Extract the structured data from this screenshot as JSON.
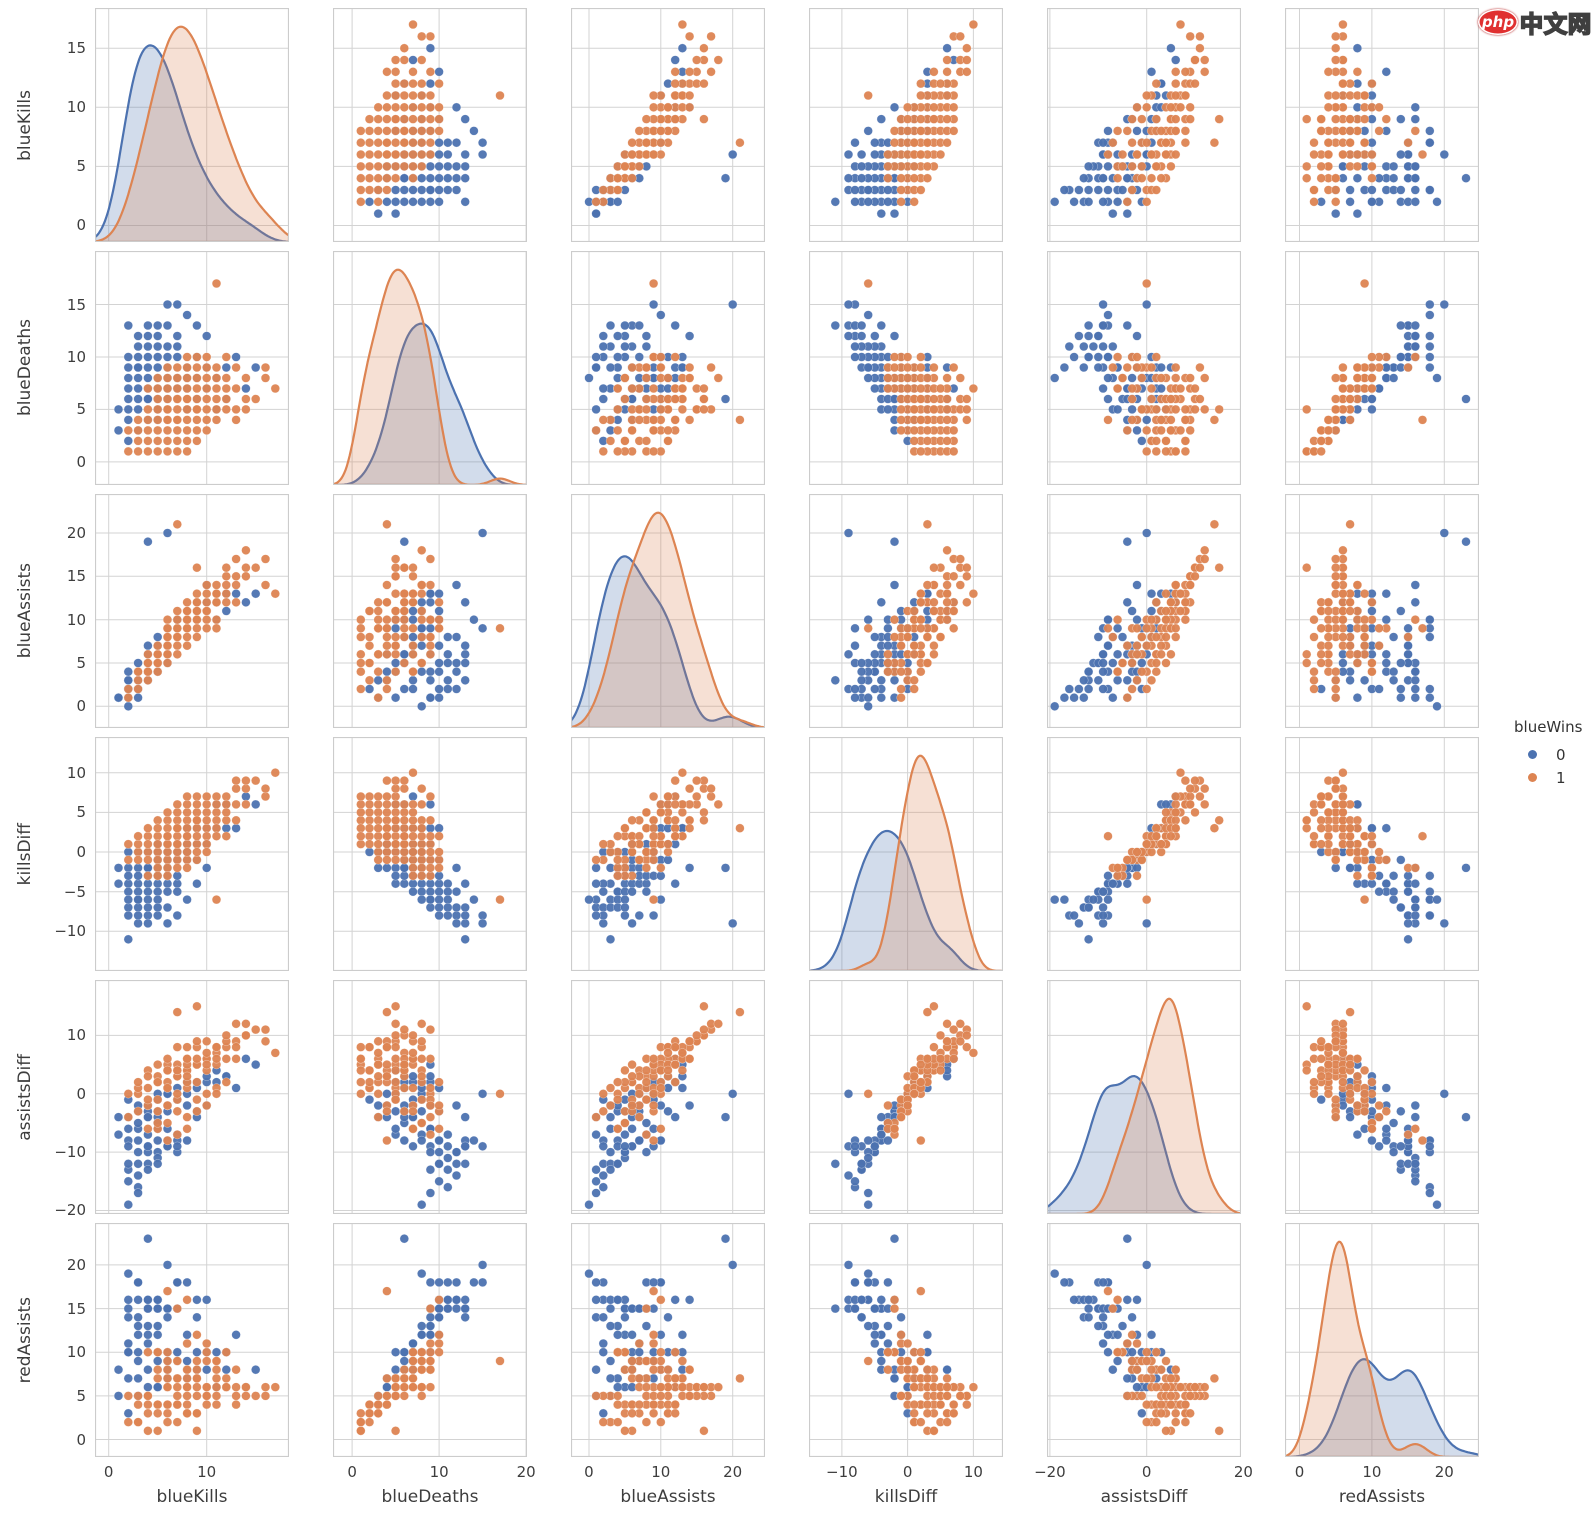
{
  "watermark": {
    "logo_text": "php",
    "site_text": "中文网"
  },
  "legend": {
    "title": "blueWins",
    "items": [
      {
        "label": "0",
        "color": "#4c72b0"
      },
      {
        "label": "1",
        "color": "#dd8452"
      }
    ]
  },
  "chart_data": {
    "type": "scatter",
    "subtype": "pairplot-matrix",
    "grid": "on",
    "diagonal": "kde",
    "hue": "blueWins",
    "legend_position": "right",
    "palette": {
      "0": "#4c72b0",
      "1": "#dd8452"
    },
    "variables": [
      {
        "name": "blueKills",
        "lim": [
          -1.4,
          18.4
        ],
        "xticks": [
          0,
          10
        ],
        "yticks": [
          0,
          5,
          10,
          15
        ]
      },
      {
        "name": "blueDeaths",
        "lim": [
          -2.2,
          20.1
        ],
        "xticks": [
          0,
          10,
          20
        ],
        "yticks": [
          0,
          5,
          10,
          15
        ]
      },
      {
        "name": "blueAssists",
        "lim": [
          -2.5,
          24.5
        ],
        "xticks": [
          0,
          10,
          20
        ],
        "yticks": [
          0,
          5,
          10,
          15,
          20
        ]
      },
      {
        "name": "killsDiff",
        "lim": [
          -15.0,
          14.5
        ],
        "xticks": [
          -10,
          0,
          10
        ],
        "yticks": [
          -10,
          -5,
          0,
          5,
          10
        ]
      },
      {
        "name": "assistsDiff",
        "lim": [
          -20.6,
          19.5
        ],
        "xticks": [
          -20,
          0,
          20
        ],
        "yticks": [
          -20,
          -10,
          0,
          10
        ]
      },
      {
        "name": "redAssists",
        "lim": [
          -2.0,
          24.8
        ],
        "xticks": [
          0,
          10,
          20
        ],
        "yticks": [
          0,
          5,
          10,
          15,
          20
        ]
      }
    ],
    "columns": [
      "blueKills",
      "blueDeaths",
      "blueAssists",
      "killsDiff",
      "assistsDiff",
      "redAssists",
      "blueWins"
    ],
    "records": [
      [
        5,
        3,
        6,
        2,
        2,
        4,
        1
      ],
      [
        7,
        4,
        8,
        3,
        3,
        5,
        1
      ],
      [
        6,
        5,
        7,
        1,
        1,
        6,
        1
      ],
      [
        8,
        6,
        10,
        2,
        4,
        6,
        1
      ],
      [
        9,
        5,
        11,
        4,
        5,
        6,
        1
      ],
      [
        10,
        7,
        12,
        3,
        6,
        6,
        1
      ],
      [
        4,
        2,
        5,
        2,
        1,
        4,
        1
      ],
      [
        3,
        3,
        4,
        0,
        0,
        4,
        1
      ],
      [
        6,
        4,
        6,
        2,
        2,
        4,
        1
      ],
      [
        7,
        6,
        9,
        1,
        3,
        6,
        1
      ],
      [
        8,
        4,
        9,
        4,
        4,
        5,
        1
      ],
      [
        11,
        6,
        13,
        5,
        7,
        6,
        1
      ],
      [
        12,
        8,
        14,
        4,
        8,
        6,
        1
      ],
      [
        13,
        7,
        15,
        6,
        9,
        6,
        1
      ],
      [
        9,
        8,
        10,
        1,
        2,
        8,
        1
      ],
      [
        5,
        5,
        6,
        0,
        -1,
        7,
        1
      ],
      [
        6,
        7,
        7,
        -1,
        -2,
        9,
        1
      ],
      [
        7,
        8,
        8,
        -1,
        -1,
        9,
        1
      ],
      [
        10,
        5,
        11,
        5,
        6,
        5,
        1
      ],
      [
        11,
        4,
        12,
        7,
        8,
        4,
        1
      ],
      [
        8,
        3,
        10,
        5,
        6,
        4,
        1
      ],
      [
        9,
        2,
        11,
        7,
        8,
        3,
        1
      ],
      [
        14,
        6,
        16,
        8,
        10,
        6,
        1
      ],
      [
        16,
        9,
        17,
        7,
        11,
        6,
        1
      ],
      [
        4,
        4,
        3,
        0,
        -2,
        5,
        1
      ],
      [
        5,
        6,
        5,
        -1,
        -3,
        8,
        1
      ],
      [
        6,
        6,
        8,
        0,
        1,
        7,
        1
      ],
      [
        7,
        5,
        7,
        2,
        0,
        7,
        1
      ],
      [
        8,
        7,
        9,
        1,
        1,
        8,
        1
      ],
      [
        9,
        6,
        12,
        3,
        5,
        7,
        1
      ],
      [
        10,
        8,
        13,
        2,
        4,
        9,
        1
      ],
      [
        12,
        5,
        15,
        7,
        9,
        6,
        1
      ],
      [
        7,
        3,
        9,
        4,
        5,
        4,
        1
      ],
      [
        6,
        2,
        7,
        4,
        4,
        3,
        1
      ],
      [
        5,
        1,
        6,
        4,
        5,
        1,
        1
      ],
      [
        4,
        1,
        5,
        3,
        4,
        1,
        1
      ],
      [
        3,
        2,
        3,
        1,
        1,
        2,
        1
      ],
      [
        2,
        1,
        2,
        1,
        0,
        2,
        1
      ],
      [
        8,
        5,
        8,
        3,
        2,
        6,
        1
      ],
      [
        9,
        4,
        10,
        5,
        5,
        5,
        1
      ],
      [
        10,
        6,
        11,
        4,
        5,
        6,
        1
      ],
      [
        11,
        7,
        12,
        4,
        5,
        7,
        1
      ],
      [
        12,
        6,
        13,
        6,
        6,
        7,
        1
      ],
      [
        13,
        9,
        14,
        4,
        6,
        8,
        1
      ],
      [
        7,
        7,
        6,
        0,
        -3,
        9,
        1
      ],
      [
        6,
        8,
        5,
        -2,
        -5,
        10,
        1
      ],
      [
        5,
        7,
        4,
        -2,
        -6,
        10,
        1
      ],
      [
        8,
        9,
        7,
        -1,
        -4,
        11,
        1
      ],
      [
        9,
        10,
        9,
        -1,
        -3,
        12,
        1
      ],
      [
        10,
        9,
        10,
        1,
        0,
        10,
        1
      ],
      [
        7,
        2,
        8,
        5,
        4,
        4,
        1
      ],
      [
        6,
        3,
        9,
        3,
        5,
        4,
        1
      ],
      [
        5,
        4,
        7,
        1,
        3,
        4,
        1
      ],
      [
        4,
        5,
        4,
        -1,
        -1,
        5,
        1
      ],
      [
        3,
        4,
        2,
        -1,
        -3,
        5,
        1
      ],
      [
        2,
        3,
        1,
        -1,
        -4,
        5,
        1
      ],
      [
        8,
        8,
        11,
        0,
        3,
        8,
        1
      ],
      [
        9,
        7,
        13,
        2,
        6,
        7,
        1
      ],
      [
        10,
        4,
        14,
        6,
        9,
        5,
        1
      ],
      [
        11,
        5,
        13,
        6,
        8,
        5,
        1
      ],
      [
        12,
        7,
        16,
        5,
        10,
        6,
        1
      ],
      [
        13,
        5,
        17,
        8,
        12,
        5,
        1
      ],
      [
        14,
        8,
        18,
        6,
        12,
        6,
        1
      ],
      [
        15,
        6,
        16,
        9,
        11,
        5,
        1
      ],
      [
        6,
        5,
        10,
        1,
        4,
        6,
        1
      ],
      [
        7,
        6,
        11,
        1,
        4,
        7,
        1
      ],
      [
        8,
        6,
        12,
        2,
        5,
        7,
        1
      ],
      [
        9,
        9,
        8,
        0,
        -1,
        9,
        1
      ],
      [
        10,
        10,
        9,
        0,
        -2,
        11,
        1
      ],
      [
        11,
        8,
        14,
        3,
        6,
        8,
        1
      ],
      [
        5,
        2,
        5,
        3,
        2,
        3,
        1
      ],
      [
        4,
        3,
        6,
        1,
        3,
        3,
        1
      ],
      [
        3,
        1,
        4,
        2,
        2,
        2,
        1
      ],
      [
        6,
        1,
        8,
        5,
        6,
        2,
        1
      ],
      [
        7,
        1,
        10,
        6,
        8,
        2,
        1
      ],
      [
        8,
        2,
        11,
        6,
        8,
        3,
        1
      ],
      [
        9,
        3,
        12,
        6,
        9,
        3,
        1
      ],
      [
        10,
        3,
        11,
        7,
        7,
        4,
        1
      ],
      [
        11,
        9,
        10,
        2,
        1,
        9,
        1
      ],
      [
        12,
        10,
        12,
        2,
        2,
        10,
        1
      ],
      [
        17,
        7,
        13,
        10,
        7,
        6,
        1
      ],
      [
        7,
        4,
        21,
        3,
        14,
        7,
        1
      ],
      [
        11,
        17,
        9,
        -6,
        0,
        9,
        1
      ],
      [
        8,
        1,
        9,
        7,
        6,
        3,
        1
      ],
      [
        13,
        4,
        12,
        9,
        8,
        4,
        1
      ],
      [
        14,
        5,
        15,
        9,
        10,
        5,
        1
      ],
      [
        6,
        9,
        6,
        -3,
        -2,
        8,
        1
      ],
      [
        5,
        8,
        5,
        -3,
        -5,
        10,
        1
      ],
      [
        4,
        7,
        4,
        -3,
        -6,
        10,
        1
      ],
      [
        16,
        8,
        14,
        8,
        9,
        5,
        1
      ],
      [
        7,
        9,
        8,
        -2,
        -7,
        15,
        1
      ],
      [
        8,
        10,
        10,
        -2,
        -6,
        16,
        1
      ],
      [
        6,
        4,
        9,
        2,
        -8,
        17,
        1
      ],
      [
        9,
        5,
        16,
        4,
        15,
        1,
        1
      ],
      [
        3,
        5,
        4,
        -2,
        -3,
        7,
        0
      ],
      [
        4,
        6,
        5,
        -2,
        -3,
        8,
        0
      ],
      [
        5,
        7,
        6,
        -2,
        -4,
        10,
        0
      ],
      [
        6,
        8,
        7,
        -2,
        -3,
        10,
        0
      ],
      [
        2,
        4,
        3,
        -2,
        -4,
        7,
        0
      ],
      [
        3,
        7,
        3,
        -4,
        -6,
        9,
        0
      ],
      [
        4,
        8,
        5,
        -4,
        -7,
        12,
        0
      ],
      [
        5,
        9,
        6,
        -4,
        -6,
        12,
        0
      ],
      [
        6,
        10,
        7,
        -4,
        -8,
        15,
        0
      ],
      [
        7,
        11,
        8,
        -4,
        -7,
        15,
        0
      ],
      [
        2,
        6,
        2,
        -4,
        -8,
        10,
        0
      ],
      [
        3,
        8,
        4,
        -5,
        -8,
        12,
        0
      ],
      [
        4,
        9,
        4,
        -5,
        -9,
        13,
        0
      ],
      [
        5,
        10,
        5,
        -5,
        -10,
        15,
        0
      ],
      [
        6,
        11,
        6,
        -5,
        -9,
        15,
        0
      ],
      [
        7,
        12,
        8,
        -5,
        -10,
        18,
        0
      ],
      [
        1,
        5,
        1,
        -4,
        -7,
        8,
        0
      ],
      [
        2,
        7,
        2,
        -5,
        -9,
        11,
        0
      ],
      [
        3,
        9,
        3,
        -6,
        -10,
        13,
        0
      ],
      [
        4,
        10,
        4,
        -6,
        -12,
        16,
        0
      ],
      [
        5,
        11,
        5,
        -6,
        -11,
        16,
        0
      ],
      [
        2,
        9,
        1,
        -7,
        -13,
        14,
        0
      ],
      [
        3,
        10,
        2,
        -7,
        -12,
        14,
        0
      ],
      [
        4,
        12,
        5,
        -8,
        -10,
        15,
        0
      ],
      [
        3,
        12,
        2,
        -9,
        -14,
        16,
        0
      ],
      [
        2,
        13,
        3,
        -11,
        -12,
        15,
        0
      ],
      [
        4,
        13,
        6,
        -9,
        -9,
        15,
        0
      ],
      [
        5,
        13,
        7,
        -8,
        -8,
        15,
        0
      ],
      [
        6,
        6,
        6,
        0,
        -2,
        8,
        0
      ],
      [
        7,
        7,
        8,
        0,
        -1,
        9,
        0
      ],
      [
        8,
        8,
        9,
        0,
        0,
        9,
        0
      ],
      [
        5,
        5,
        5,
        0,
        -1,
        6,
        0
      ],
      [
        4,
        4,
        4,
        0,
        -2,
        6,
        0
      ],
      [
        6,
        7,
        7,
        -1,
        -2,
        9,
        0
      ],
      [
        7,
        8,
        9,
        -1,
        -1,
        10,
        0
      ],
      [
        8,
        9,
        10,
        -1,
        -2,
        12,
        0
      ],
      [
        9,
        10,
        11,
        -1,
        -3,
        14,
        0
      ],
      [
        5,
        6,
        6,
        -1,
        -3,
        9,
        0
      ],
      [
        7,
        6,
        8,
        1,
        1,
        7,
        0
      ],
      [
        8,
        7,
        10,
        1,
        2,
        8,
        0
      ],
      [
        9,
        8,
        11,
        1,
        1,
        10,
        0
      ],
      [
        10,
        9,
        12,
        1,
        2,
        10,
        0
      ],
      [
        6,
        5,
        7,
        1,
        0,
        7,
        0
      ],
      [
        5,
        4,
        6,
        1,
        0,
        6,
        0
      ],
      [
        9,
        6,
        10,
        3,
        2,
        8,
        0
      ],
      [
        10,
        7,
        11,
        3,
        3,
        8,
        0
      ],
      [
        11,
        8,
        12,
        3,
        2,
        10,
        0
      ],
      [
        12,
        9,
        13,
        3,
        3,
        10,
        0
      ],
      [
        13,
        10,
        13,
        3,
        1,
        12,
        0
      ],
      [
        8,
        5,
        9,
        3,
        2,
        7,
        0
      ],
      [
        2,
        2,
        2,
        0,
        -1,
        3,
        0
      ],
      [
        1,
        3,
        1,
        -2,
        -4,
        5,
        0
      ],
      [
        3,
        3,
        3,
        0,
        -2,
        5,
        0
      ],
      [
        4,
        7,
        7,
        -3,
        -4,
        11,
        0
      ],
      [
        3,
        6,
        5,
        -3,
        -5,
        10,
        0
      ],
      [
        2,
        5,
        4,
        -3,
        -6,
        10,
        0
      ],
      [
        5,
        8,
        8,
        -3,
        -5,
        13,
        0
      ],
      [
        6,
        9,
        9,
        -3,
        -6,
        15,
        0
      ],
      [
        7,
        10,
        10,
        -3,
        -8,
        18,
        0
      ],
      [
        4,
        11,
        3,
        -7,
        -13,
        16,
        0
      ],
      [
        3,
        11,
        2,
        -8,
        -16,
        18,
        0
      ],
      [
        2,
        10,
        1,
        -8,
        -15,
        16,
        0
      ],
      [
        5,
        12,
        4,
        -7,
        -12,
        16,
        0
      ],
      [
        6,
        13,
        5,
        -7,
        -9,
        14,
        0
      ],
      [
        15,
        9,
        13,
        6,
        5,
        8,
        0
      ],
      [
        10,
        12,
        14,
        -2,
        -2,
        16,
        0
      ],
      [
        9,
        13,
        12,
        -4,
        -4,
        16,
        0
      ],
      [
        8,
        14,
        10,
        -6,
        -8,
        18,
        0
      ],
      [
        7,
        15,
        9,
        -8,
        -9,
        18,
        0
      ],
      [
        6,
        15,
        20,
        -9,
        0,
        20,
        0
      ],
      [
        4,
        6,
        19,
        -2,
        -4,
        23,
        0
      ],
      [
        3,
        9,
        1,
        -6,
        -17,
        18,
        0
      ],
      [
        12,
        6,
        11,
        6,
        3,
        8,
        0
      ],
      [
        11,
        5,
        10,
        6,
        4,
        6,
        0
      ],
      [
        14,
        7,
        12,
        7,
        6,
        6,
        0
      ],
      [
        2,
        8,
        0,
        -6,
        -19,
        19,
        0
      ]
    ]
  }
}
